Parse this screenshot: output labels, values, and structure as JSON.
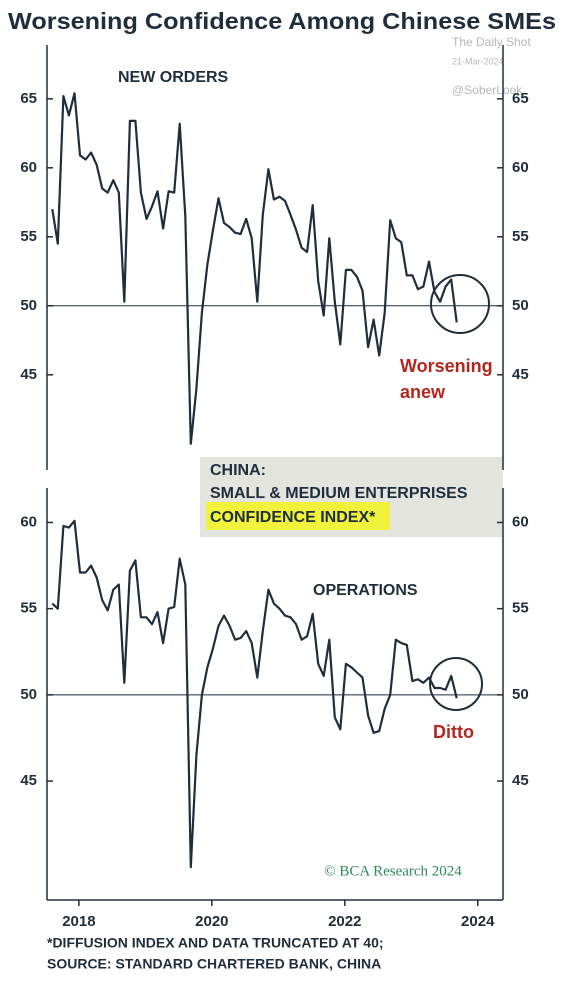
{
  "title": "Worsening Confidence Among Chinese SMEs",
  "watermark": [
    "The Daily Shot",
    "21-Mar-2024",
    "@SoberLook"
  ],
  "legend_box": [
    "CHINA:",
    "SMALL & MEDIUM ENTERPRISES",
    "CONFIDENCE INDEX*"
  ],
  "footnote": [
    "*DIFFUSION INDEX AND DATA TRUNCATED AT 40;",
    "SOURCE: STANDARD CHARTERED BANK, CHINA"
  ],
  "credit": "© BCA Research 2024",
  "chart_data": [
    {
      "type": "line",
      "title": "NEW ORDERS",
      "annotation": [
        "Worsening",
        "anew"
      ],
      "color": "#1f2e3d",
      "hline": 50,
      "xlim": [
        2017.92,
        2024.78
      ],
      "ylim": [
        38.1,
        68.9
      ],
      "yticks": [
        45,
        50,
        55,
        60,
        65
      ],
      "x": [
        2018,
        2018.083,
        2018.167,
        2018.25,
        2018.333,
        2018.417,
        2018.5,
        2018.583,
        2018.667,
        2018.75,
        2018.833,
        2018.917,
        2019,
        2019.083,
        2019.167,
        2019.25,
        2019.333,
        2019.417,
        2019.5,
        2019.583,
        2019.667,
        2019.75,
        2019.833,
        2019.917,
        2020,
        2020.083,
        2020.167,
        2020.25,
        2020.333,
        2020.417,
        2020.5,
        2020.583,
        2020.667,
        2020.75,
        2020.833,
        2020.917,
        2021,
        2021.083,
        2021.167,
        2021.25,
        2021.333,
        2021.417,
        2021.5,
        2021.583,
        2021.667,
        2021.75,
        2021.833,
        2021.917,
        2022,
        2022.083,
        2022.167,
        2022.25,
        2022.333,
        2022.417,
        2022.5,
        2022.583,
        2022.667,
        2022.75,
        2022.833,
        2022.917,
        2023,
        2023.083,
        2023.167,
        2023.25,
        2023.333,
        2023.417,
        2023.5,
        2023.583,
        2023.667,
        2023.75,
        2023.833,
        2023.917,
        2024,
        2024.083
      ],
      "values": [
        57,
        54.5,
        65.2,
        63.8,
        65.4,
        60.9,
        60.6,
        61.1,
        60.2,
        58.5,
        58.2,
        59.1,
        58.2,
        50.3,
        63.4,
        63.4,
        58.2,
        56.3,
        57.2,
        58.3,
        55.6,
        58.3,
        58.2,
        63.2,
        56.5,
        40,
        44,
        49.5,
        53,
        55.5,
        57.8,
        56,
        55.7,
        55.3,
        55.2,
        56.3,
        54.9,
        50.3,
        56.6,
        59.9,
        57.7,
        57.9,
        57.6,
        56.6,
        55.5,
        54.2,
        53.9,
        57.3,
        51.8,
        49.3,
        54.9,
        50.3,
        47.2,
        52.6,
        52.6,
        52.1,
        51.1,
        47,
        49,
        46.4,
        49.5,
        56.2,
        54.9,
        54.6,
        52.2,
        52.2,
        51.2,
        51.4,
        53.2,
        51,
        50.3,
        51.4,
        51.9,
        48.8
      ]
    },
    {
      "type": "line",
      "title": "OPERATIONS",
      "annotation": [
        "Ditto"
      ],
      "color": "#1f2e3d",
      "hline": 50,
      "xlim": [
        2017.92,
        2024.78
      ],
      "ylim": [
        38.1,
        62
      ],
      "yticks": [
        45,
        50,
        55,
        60
      ],
      "xticks": [
        {
          "value": 2018.4,
          "label": "2018"
        },
        {
          "value": 2020.4,
          "label": "2020"
        },
        {
          "value": 2022.4,
          "label": "2022"
        },
        {
          "value": 2024.4,
          "label": "2024"
        }
      ],
      "x": [
        2018,
        2018.083,
        2018.167,
        2018.25,
        2018.333,
        2018.417,
        2018.5,
        2018.583,
        2018.667,
        2018.75,
        2018.833,
        2018.917,
        2019,
        2019.083,
        2019.167,
        2019.25,
        2019.333,
        2019.417,
        2019.5,
        2019.583,
        2019.667,
        2019.75,
        2019.833,
        2019.917,
        2020,
        2020.083,
        2020.167,
        2020.25,
        2020.333,
        2020.417,
        2020.5,
        2020.583,
        2020.667,
        2020.75,
        2020.833,
        2020.917,
        2021,
        2021.083,
        2021.167,
        2021.25,
        2021.333,
        2021.417,
        2021.5,
        2021.583,
        2021.667,
        2021.75,
        2021.833,
        2021.917,
        2022,
        2022.083,
        2022.167,
        2022.25,
        2022.333,
        2022.417,
        2022.5,
        2022.583,
        2022.667,
        2022.75,
        2022.833,
        2022.917,
        2023,
        2023.083,
        2023.167,
        2023.25,
        2023.333,
        2023.417,
        2023.5,
        2023.583,
        2023.667,
        2023.75,
        2023.833,
        2023.917,
        2024,
        2024.083
      ],
      "values": [
        55.3,
        55,
        59.8,
        59.7,
        60.1,
        57.1,
        57.1,
        57.5,
        56.8,
        55.5,
        54.9,
        56.1,
        56.4,
        50.7,
        57.2,
        57.8,
        54.5,
        54.5,
        54.1,
        54.8,
        53,
        55,
        55.1,
        57.9,
        56.4,
        40,
        46.5,
        50,
        51.6,
        52.7,
        54,
        54.6,
        54,
        53.2,
        53.3,
        53.7,
        53,
        51,
        53.7,
        56.1,
        55.3,
        55,
        54.6,
        54.5,
        54.1,
        53.2,
        53.4,
        54.7,
        51.8,
        51.1,
        53.2,
        48.7,
        48,
        51.8,
        51.6,
        51.3,
        51,
        48.8,
        47.8,
        47.9,
        49.2,
        50,
        53.2,
        53,
        52.9,
        50.8,
        50.9,
        50.7,
        51,
        50.4,
        50.4,
        50.3,
        51.1,
        49.8
      ]
    }
  ]
}
